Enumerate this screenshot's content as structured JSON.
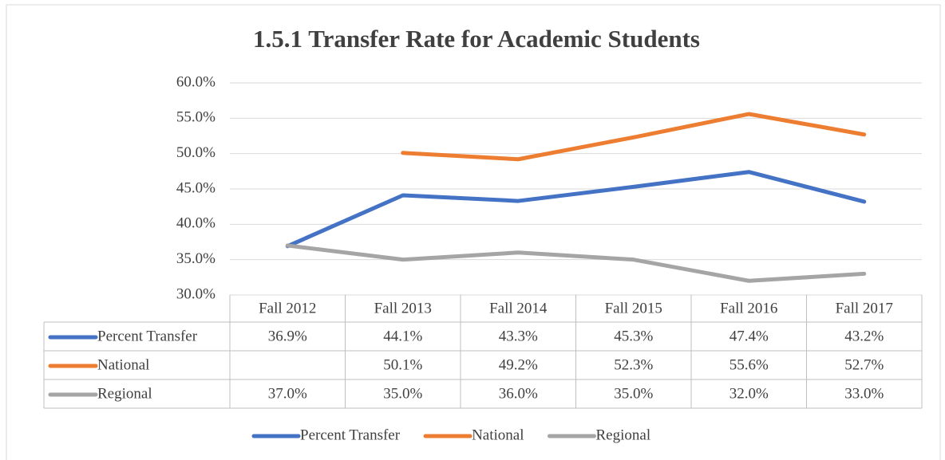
{
  "chart_data": {
    "type": "line",
    "title": "1.5.1 Transfer Rate for Academic Students",
    "categories": [
      "Fall 2012",
      "Fall 2013",
      "Fall 2014",
      "Fall 2015",
      "Fall 2016",
      "Fall 2017"
    ],
    "series": [
      {
        "name": "Percent Transfer",
        "color": "#4472c4",
        "values": [
          36.9,
          44.1,
          43.3,
          45.3,
          47.4,
          43.2
        ],
        "value_labels": [
          "36.9%",
          "44.1%",
          "43.3%",
          "45.3%",
          "47.4%",
          "43.2%"
        ]
      },
      {
        "name": "National",
        "color": "#ed7d31",
        "values": [
          null,
          50.1,
          49.2,
          52.3,
          55.6,
          52.7
        ],
        "value_labels": [
          null,
          "50.1%",
          "49.2%",
          "52.3%",
          "55.6%",
          "52.7%"
        ]
      },
      {
        "name": "Regional",
        "color": "#a5a5a5",
        "values": [
          37.0,
          35.0,
          36.0,
          35.0,
          32.0,
          33.0
        ],
        "value_labels": [
          "37.0%",
          "35.0%",
          "36.0%",
          "35.0%",
          "32.0%",
          "33.0%"
        ]
      }
    ],
    "ylim": [
      30,
      60
    ],
    "yticks": [
      {
        "value": 30,
        "label": "30.0%"
      },
      {
        "value": 35,
        "label": "35.0%"
      },
      {
        "value": 40,
        "label": "40.0%"
      },
      {
        "value": 45,
        "label": "45.0%"
      },
      {
        "value": 50,
        "label": "50.0%"
      },
      {
        "value": 55,
        "label": "55.0%"
      },
      {
        "value": 60,
        "label": "60.0%"
      }
    ],
    "grid": true,
    "legend": "bottom"
  }
}
